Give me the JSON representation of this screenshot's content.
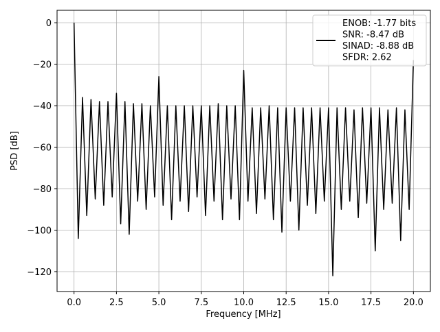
{
  "chart_data": {
    "type": "line",
    "xlabel": "Frequency [MHz]",
    "ylabel": "PSD [dB]",
    "x": [
      0,
      0.25,
      0.5,
      0.75,
      1,
      1.25,
      1.5,
      1.75,
      2,
      2.25,
      2.5,
      2.75,
      3,
      3.25,
      3.5,
      3.75,
      4,
      4.25,
      4.5,
      4.75,
      5,
      5.25,
      5.5,
      5.75,
      6,
      6.25,
      6.5,
      6.75,
      7,
      7.25,
      7.5,
      7.75,
      8,
      8.25,
      8.5,
      8.75,
      9,
      9.25,
      9.5,
      9.75,
      10,
      10.25,
      10.5,
      10.75,
      11,
      11.25,
      11.5,
      11.75,
      12,
      12.25,
      12.5,
      12.75,
      13,
      13.25,
      13.5,
      13.75,
      14,
      14.25,
      14.5,
      14.75,
      15,
      15.25,
      15.5,
      15.75,
      16,
      16.25,
      16.5,
      16.75,
      17,
      17.25,
      17.5,
      17.75,
      18,
      18.25,
      18.5,
      18.75,
      19,
      19.25,
      19.5,
      19.75,
      20
    ],
    "series": [
      {
        "name": "ENOB: -1.77 bits\nSNR: -8.47 dB\nSINAD: -8.88 dB\nSFDR: 2.62",
        "color": "#000000",
        "values": [
          0,
          -104,
          -36,
          -93,
          -37,
          -85,
          -38,
          -88,
          -38,
          -84,
          -34,
          -97,
          -38,
          -102,
          -39,
          -86,
          -39,
          -90,
          -40,
          -84,
          -26,
          -88,
          -40,
          -95,
          -40,
          -86,
          -40,
          -91,
          -40,
          -84,
          -40,
          -93,
          -40,
          -86,
          -39,
          -95,
          -40,
          -85,
          -40,
          -95,
          -23,
          -86,
          -41,
          -92,
          -41,
          -85,
          -40,
          -95,
          -41,
          -101,
          -41,
          -86,
          -41,
          -100,
          -41,
          -88,
          -41,
          -92,
          -41,
          -86,
          -41,
          -122,
          -41,
          -90,
          -41,
          -86,
          -42,
          -94,
          -41,
          -87,
          -41,
          -110,
          -41,
          -90,
          -42,
          -87,
          -41,
          -105,
          -42,
          -90,
          -18
        ]
      }
    ],
    "xlim": [
      -1,
      21
    ],
    "ylim": [
      -129.6,
      6
    ],
    "xticks": [
      {
        "value": 0,
        "label": "0.0"
      },
      2.5,
      {
        "value": 5,
        "label": "5.0"
      },
      7.5,
      {
        "value": 10,
        "label": "10.0"
      },
      12.5,
      {
        "value": 15,
        "label": "15.0"
      },
      17.5,
      {
        "value": 20,
        "label": "20.0"
      }
    ],
    "yticks": [
      0,
      {
        "value": -20,
        "label": "−20"
      },
      {
        "value": -40,
        "label": "−40"
      },
      {
        "value": -60,
        "label": "−60"
      },
      {
        "value": -80,
        "label": "−80"
      },
      {
        "value": -100,
        "label": "−100"
      },
      {
        "value": -120,
        "label": "−120"
      }
    ],
    "grid": true,
    "legend": "upper right"
  }
}
